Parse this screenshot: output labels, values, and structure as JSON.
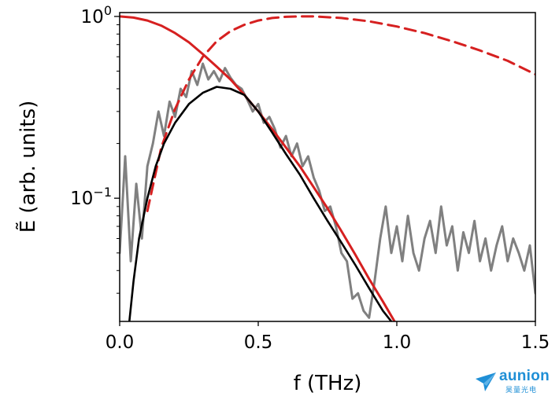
{
  "chart_data": {
    "type": "line",
    "xlabel": "f (THz)",
    "ylabel": "Ẽ (arb. units)",
    "xlim": [
      0.0,
      1.5
    ],
    "ylim": [
      0.021,
      1.05
    ],
    "yscale": "log",
    "grid": false,
    "x_ticks": [
      {
        "value": 0.0,
        "label": "0.0"
      },
      {
        "value": 0.5,
        "label": "0.5"
      },
      {
        "value": 1.0,
        "label": "1.0"
      },
      {
        "value": 1.5,
        "label": "1.5"
      }
    ],
    "y_ticks": [
      {
        "value": 1.0,
        "base": "10",
        "exp": "0"
      },
      {
        "value": 0.1,
        "base": "10",
        "exp": "−1"
      }
    ],
    "series": [
      {
        "style": "solid",
        "color": "#808080",
        "x": [
          0.0,
          0.02,
          0.04,
          0.06,
          0.08,
          0.1,
          0.12,
          0.14,
          0.16,
          0.18,
          0.2,
          0.22,
          0.24,
          0.26,
          0.28,
          0.3,
          0.32,
          0.34,
          0.36,
          0.38,
          0.4,
          0.42,
          0.44,
          0.46,
          0.48,
          0.5,
          0.52,
          0.54,
          0.56,
          0.58,
          0.6,
          0.62,
          0.64,
          0.66,
          0.68,
          0.7,
          0.72,
          0.74,
          0.76,
          0.78,
          0.8,
          0.82,
          0.84,
          0.86,
          0.88,
          0.9,
          0.92,
          0.94,
          0.96,
          0.98,
          1.0,
          1.02,
          1.04,
          1.06,
          1.08,
          1.1,
          1.12,
          1.14,
          1.16,
          1.18,
          1.2,
          1.22,
          1.24,
          1.26,
          1.28,
          1.3,
          1.32,
          1.34,
          1.36,
          1.38,
          1.4,
          1.42,
          1.44,
          1.46,
          1.48,
          1.5
        ],
        "y": [
          0.05,
          0.17,
          0.045,
          0.12,
          0.06,
          0.15,
          0.2,
          0.3,
          0.22,
          0.34,
          0.28,
          0.4,
          0.36,
          0.5,
          0.42,
          0.55,
          0.45,
          0.5,
          0.44,
          0.52,
          0.46,
          0.42,
          0.4,
          0.35,
          0.3,
          0.33,
          0.26,
          0.28,
          0.24,
          0.19,
          0.22,
          0.17,
          0.2,
          0.15,
          0.17,
          0.13,
          0.11,
          0.085,
          0.09,
          0.07,
          0.05,
          0.045,
          0.028,
          0.03,
          0.024,
          0.022,
          0.035,
          0.06,
          0.09,
          0.05,
          0.07,
          0.045,
          0.08,
          0.05,
          0.04,
          0.06,
          0.075,
          0.05,
          0.09,
          0.055,
          0.07,
          0.04,
          0.065,
          0.05,
          0.075,
          0.045,
          0.06,
          0.04,
          0.055,
          0.07,
          0.045,
          0.06,
          0.05,
          0.04,
          0.055,
          0.03
        ]
      },
      {
        "style": "solid",
        "color": "#d62020",
        "x": [
          0.0,
          0.05,
          0.1,
          0.15,
          0.2,
          0.25,
          0.3,
          0.35,
          0.4,
          0.45,
          0.5,
          0.55,
          0.6,
          0.65,
          0.7,
          0.75,
          0.8,
          0.85,
          0.9,
          0.95,
          1.0
        ],
        "y": [
          1.0,
          0.985,
          0.95,
          0.89,
          0.81,
          0.72,
          0.62,
          0.53,
          0.45,
          0.37,
          0.3,
          0.24,
          0.19,
          0.15,
          0.115,
          0.088,
          0.066,
          0.049,
          0.036,
          0.027,
          0.02
        ]
      },
      {
        "style": "dashed",
        "color": "#d62020",
        "x": [
          0.1,
          0.15,
          0.2,
          0.25,
          0.3,
          0.35,
          0.4,
          0.45,
          0.5,
          0.55,
          0.6,
          0.65,
          0.7,
          0.8,
          0.9,
          1.0,
          1.1,
          1.2,
          1.3,
          1.4,
          1.5
        ],
        "y": [
          0.085,
          0.19,
          0.31,
          0.45,
          0.6,
          0.73,
          0.83,
          0.9,
          0.95,
          0.98,
          0.995,
          1.0,
          1.0,
          0.98,
          0.94,
          0.88,
          0.81,
          0.73,
          0.65,
          0.57,
          0.48
        ]
      },
      {
        "style": "solid",
        "color": "#000000",
        "x": [
          0.035,
          0.05,
          0.07,
          0.1,
          0.13,
          0.16,
          0.2,
          0.25,
          0.3,
          0.35,
          0.4,
          0.45,
          0.5,
          0.55,
          0.6,
          0.65,
          0.7,
          0.75,
          0.8,
          0.85,
          0.9,
          0.95,
          0.98
        ],
        "y": [
          0.021,
          0.035,
          0.06,
          0.1,
          0.15,
          0.2,
          0.26,
          0.33,
          0.38,
          0.41,
          0.4,
          0.37,
          0.3,
          0.23,
          0.175,
          0.135,
          0.1,
          0.075,
          0.057,
          0.043,
          0.032,
          0.024,
          0.021
        ]
      }
    ]
  },
  "watermark": {
    "brand": "aunion",
    "sub": "昊量光电",
    "color": "#1f8fd6"
  }
}
